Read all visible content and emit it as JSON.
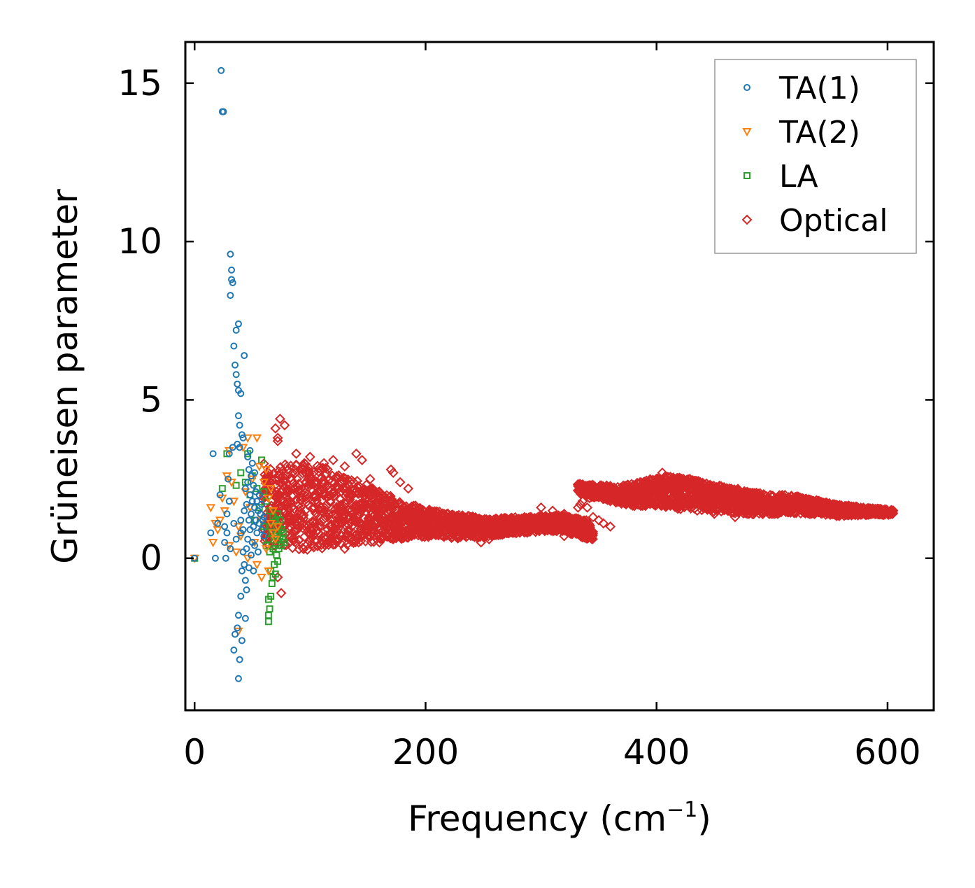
{
  "chart_data": {
    "type": "scatter",
    "xlabel": "Frequency (cm",
    "xlabel_sup": "−1",
    "xlabel_suffix": ")",
    "ylabel": "Grüneisen parameter",
    "xlim": [
      -8,
      640
    ],
    "ylim": [
      -4.8,
      16.3
    ],
    "x_ticks": [
      0,
      200,
      400,
      600
    ],
    "y_ticks": [
      0,
      5,
      10,
      15
    ],
    "grid": false,
    "legend_position": "top-right",
    "series": [
      {
        "name": "TA(1)",
        "marker": "circle",
        "color": "#1f77b4",
        "points": [
          [
            0,
            0
          ],
          [
            14,
            0.8
          ],
          [
            16,
            3.3
          ],
          [
            18,
            0
          ],
          [
            20,
            1.1
          ],
          [
            22,
            2.0
          ],
          [
            23,
            15.4
          ],
          [
            24,
            14.1
          ],
          [
            25,
            14.1
          ],
          [
            26,
            1.0
          ],
          [
            26,
            0.5
          ],
          [
            27,
            0
          ],
          [
            28,
            1.4
          ],
          [
            28,
            0.8
          ],
          [
            29,
            2.5
          ],
          [
            30,
            3.3
          ],
          [
            30,
            1.8
          ],
          [
            31,
            9.6
          ],
          [
            31,
            0.3
          ],
          [
            31,
            8.3
          ],
          [
            32,
            9.1
          ],
          [
            32,
            8.8
          ],
          [
            33,
            8.7
          ],
          [
            33,
            3.5
          ],
          [
            34,
            6.7
          ],
          [
            34,
            1.1
          ],
          [
            34,
            -2.9
          ],
          [
            35,
            6.1
          ],
          [
            35,
            -2.4
          ],
          [
            36,
            5.8
          ],
          [
            36,
            7.2
          ],
          [
            36,
            0.6
          ],
          [
            37,
            5.5
          ],
          [
            37,
            3.6
          ],
          [
            37,
            -2.2
          ],
          [
            38,
            7.4
          ],
          [
            38,
            5.3
          ],
          [
            38,
            4.5
          ],
          [
            38,
            -1.8
          ],
          [
            38,
            -3.8
          ],
          [
            39,
            4.2
          ],
          [
            39,
            3.5
          ],
          [
            39,
            -3.2
          ],
          [
            40,
            5.2
          ],
          [
            40,
            1.2
          ],
          [
            40,
            0.8
          ],
          [
            40,
            -1.2
          ],
          [
            41,
            3.9
          ],
          [
            41,
            -0.4
          ],
          [
            41,
            -2.6
          ],
          [
            42,
            3.8
          ],
          [
            42,
            0.9
          ],
          [
            42,
            0.2
          ],
          [
            43,
            6.4
          ],
          [
            43,
            1.5
          ],
          [
            43,
            -0.2
          ],
          [
            44,
            2.2
          ],
          [
            44,
            -0.7
          ],
          [
            44,
            -1.9
          ],
          [
            45,
            1.7
          ],
          [
            45,
            0.3
          ],
          [
            45,
            -1.0
          ],
          [
            46,
            3.2
          ],
          [
            46,
            2.4
          ],
          [
            46,
            0.6
          ],
          [
            47,
            2.8
          ],
          [
            47,
            1.2
          ],
          [
            47,
            -0.3
          ],
          [
            48,
            3.4
          ],
          [
            48,
            2.0
          ],
          [
            48,
            0.9
          ],
          [
            49,
            2.6
          ],
          [
            49,
            1.4
          ],
          [
            49,
            0.1
          ],
          [
            50,
            3.0
          ],
          [
            50,
            1.8
          ],
          [
            50,
            0.5
          ],
          [
            51,
            2.3
          ],
          [
            51,
            1.0
          ],
          [
            51,
            -0.4
          ],
          [
            52,
            2.7
          ],
          [
            52,
            1.6
          ],
          [
            52,
            0.4
          ],
          [
            53,
            2.1
          ],
          [
            53,
            1.2
          ],
          [
            54,
            1.8
          ],
          [
            54,
            0.8
          ],
          [
            55,
            1.5
          ],
          [
            55,
            0.2
          ],
          [
            56,
            2.0
          ],
          [
            56,
            1.1
          ],
          [
            57,
            1.4
          ],
          [
            58,
            0.9
          ],
          [
            58,
            1.7
          ],
          [
            59,
            1.2
          ],
          [
            60,
            0.7
          ],
          [
            60,
            1.3
          ]
        ]
      },
      {
        "name": "TA(2)",
        "marker": "triangle-down",
        "color": "#ff7f0e",
        "points": [
          [
            0,
            0
          ],
          [
            14,
            1.6
          ],
          [
            16,
            0.5
          ],
          [
            18,
            1.1
          ],
          [
            20,
            0.9
          ],
          [
            22,
            1.2
          ],
          [
            24,
            1.9
          ],
          [
            26,
            1.5
          ],
          [
            28,
            2.6
          ],
          [
            30,
            3.4
          ],
          [
            30,
            0.4
          ],
          [
            32,
            2.4
          ],
          [
            34,
            1.8
          ],
          [
            36,
            0.2
          ],
          [
            38,
            1.0
          ],
          [
            38,
            -2.3
          ],
          [
            40,
            0.7
          ],
          [
            42,
            3.5
          ],
          [
            44,
            2.1
          ],
          [
            46,
            3.8
          ],
          [
            46,
            0
          ],
          [
            48,
            1.6
          ],
          [
            50,
            2.5
          ],
          [
            52,
            0.5
          ],
          [
            54,
            3.8
          ],
          [
            54,
            -0.2
          ],
          [
            56,
            2.9
          ],
          [
            58,
            1.2
          ],
          [
            58,
            -0.6
          ],
          [
            60,
            2.4
          ],
          [
            62,
            2.8
          ],
          [
            62,
            0.3
          ],
          [
            64,
            1.9
          ],
          [
            64,
            -0.4
          ],
          [
            66,
            1.1
          ],
          [
            66,
            2.2
          ],
          [
            68,
            0.8
          ],
          [
            68,
            1.5
          ],
          [
            70,
            0.6
          ],
          [
            72,
            1.0
          ]
        ]
      },
      {
        "name": "LA",
        "marker": "square",
        "color": "#2ca02c",
        "points": [
          [
            0,
            0
          ],
          [
            24,
            2.2
          ],
          [
            28,
            3.3
          ],
          [
            36,
            2.3
          ],
          [
            40,
            2.7
          ],
          [
            44,
            2.4
          ],
          [
            46,
            3.3
          ],
          [
            48,
            2.0
          ],
          [
            50,
            2.6
          ],
          [
            52,
            1.2
          ],
          [
            54,
            2.2
          ],
          [
            56,
            1.6
          ],
          [
            58,
            3.1
          ],
          [
            60,
            2.1
          ],
          [
            60,
            1.0
          ],
          [
            62,
            1.8
          ],
          [
            62,
            0.4
          ],
          [
            64,
            0.6
          ],
          [
            64,
            -1.3
          ],
          [
            64,
            -1.8
          ],
          [
            64,
            -2.0
          ],
          [
            65,
            1.5
          ],
          [
            65,
            0.2
          ],
          [
            65,
            -1.6
          ],
          [
            66,
            1.0
          ],
          [
            66,
            -0.4
          ],
          [
            66,
            -1.2
          ],
          [
            67,
            0.8
          ],
          [
            67,
            -0.8
          ],
          [
            68,
            1.3
          ],
          [
            68,
            0.3
          ],
          [
            68,
            -0.6
          ],
          [
            69,
            0.7
          ],
          [
            69,
            -0.2
          ],
          [
            70,
            1.2
          ],
          [
            70,
            0.4
          ],
          [
            70,
            -0.5
          ],
          [
            71,
            0.8
          ],
          [
            71,
            0.1
          ],
          [
            72,
            1.4
          ],
          [
            72,
            0.6
          ],
          [
            72,
            -0.1
          ],
          [
            73,
            1.0
          ],
          [
            73,
            0.3
          ],
          [
            74,
            1.2
          ],
          [
            74,
            0.7
          ],
          [
            75,
            0.9
          ],
          [
            75,
            0.4
          ],
          [
            76,
            0.6
          ],
          [
            77,
            0.8
          ],
          [
            78,
            0.5
          ]
        ]
      },
      {
        "name": "Optical",
        "marker": "diamond",
        "color": "#d62728",
        "band_note": "dense cloud: centre and half-width per frequency",
        "envelope": [
          [
            60,
            1.5,
            1.5
          ],
          [
            70,
            1.6,
            1.2
          ],
          [
            80,
            1.7,
            1.3
          ],
          [
            90,
            1.6,
            1.4
          ],
          [
            100,
            1.6,
            1.4
          ],
          [
            110,
            1.6,
            1.3
          ],
          [
            120,
            1.6,
            1.2
          ],
          [
            130,
            1.5,
            1.1
          ],
          [
            140,
            1.5,
            1.0
          ],
          [
            150,
            1.4,
            0.9
          ],
          [
            160,
            1.3,
            0.8
          ],
          [
            170,
            1.3,
            0.7
          ],
          [
            180,
            1.2,
            0.6
          ],
          [
            190,
            1.2,
            0.5
          ],
          [
            200,
            1.1,
            0.45
          ],
          [
            210,
            1.1,
            0.4
          ],
          [
            220,
            1.05,
            0.4
          ],
          [
            230,
            1.0,
            0.38
          ],
          [
            240,
            1.0,
            0.35
          ],
          [
            250,
            0.95,
            0.3
          ],
          [
            260,
            1.0,
            0.28
          ],
          [
            270,
            1.0,
            0.27
          ],
          [
            280,
            1.05,
            0.25
          ],
          [
            290,
            1.05,
            0.25
          ],
          [
            300,
            1.1,
            0.24
          ],
          [
            310,
            1.1,
            0.25
          ],
          [
            320,
            1.1,
            0.25
          ],
          [
            330,
            1.0,
            0.28
          ],
          [
            340,
            0.9,
            0.3
          ],
          [
            345,
            0.8,
            0.2
          ]
        ],
        "envelope2": [
          [
            332,
            2.2,
            0.15
          ],
          [
            340,
            2.15,
            0.2
          ],
          [
            350,
            2.1,
            0.2
          ],
          [
            360,
            2.05,
            0.25
          ],
          [
            370,
            2.0,
            0.3
          ],
          [
            380,
            2.0,
            0.35
          ],
          [
            390,
            2.05,
            0.4
          ],
          [
            400,
            2.1,
            0.45
          ],
          [
            410,
            2.1,
            0.5
          ],
          [
            420,
            2.05,
            0.5
          ],
          [
            430,
            2.0,
            0.5
          ],
          [
            440,
            1.95,
            0.45
          ],
          [
            450,
            1.9,
            0.45
          ],
          [
            460,
            1.85,
            0.4
          ],
          [
            470,
            1.8,
            0.4
          ],
          [
            480,
            1.75,
            0.35
          ],
          [
            490,
            1.7,
            0.35
          ],
          [
            500,
            1.7,
            0.3
          ],
          [
            510,
            1.7,
            0.3
          ],
          [
            520,
            1.7,
            0.28
          ],
          [
            530,
            1.65,
            0.25
          ],
          [
            540,
            1.6,
            0.22
          ],
          [
            550,
            1.55,
            0.2
          ],
          [
            560,
            1.5,
            0.18
          ],
          [
            570,
            1.5,
            0.15
          ],
          [
            580,
            1.48,
            0.12
          ],
          [
            590,
            1.47,
            0.1
          ],
          [
            600,
            1.45,
            0.08
          ],
          [
            605,
            1.45,
            0.06
          ]
        ],
        "outliers": [
          [
            70,
            4.1
          ],
          [
            72,
            3.8
          ],
          [
            72,
            3.7
          ],
          [
            74,
            4.4
          ],
          [
            78,
            4.2
          ],
          [
            75,
            -1.1
          ],
          [
            72,
            -0.6
          ],
          [
            80,
            2.9
          ],
          [
            88,
            3.3
          ],
          [
            95,
            3.0
          ],
          [
            100,
            3.2
          ],
          [
            112,
            3.0
          ],
          [
            120,
            3.1
          ],
          [
            130,
            2.9
          ],
          [
            140,
            3.3
          ],
          [
            145,
            3.1
          ],
          [
            152,
            2.5
          ],
          [
            160,
            2.1
          ],
          [
            170,
            2.8
          ],
          [
            172,
            2.7
          ],
          [
            178,
            2.4
          ],
          [
            185,
            2.2
          ],
          [
            130,
            0.3
          ],
          [
            142,
            0.5
          ],
          [
            150,
            0.7
          ],
          [
            160,
            0.5
          ],
          [
            175,
            0.7
          ],
          [
            205,
            0.8
          ],
          [
            248,
            0.5
          ],
          [
            255,
            0.6
          ],
          [
            270,
            0.8
          ],
          [
            300,
            1.6
          ],
          [
            310,
            1.5
          ],
          [
            320,
            1.4
          ],
          [
            332,
            1.6
          ],
          [
            334,
            1.7
          ],
          [
            336,
            1.8
          ],
          [
            340,
            1.6
          ],
          [
            342,
            1.9
          ],
          [
            345,
            1.3
          ],
          [
            350,
            1.2
          ],
          [
            354,
            1.1
          ],
          [
            360,
            1.0
          ],
          [
            405,
            2.7
          ],
          [
            420,
            2.5
          ],
          [
            445,
            2.3
          ],
          [
            462,
            1.5
          ],
          [
            468,
            1.3
          ],
          [
            480,
            1.4
          ],
          [
            450,
            1.4
          ],
          [
            320,
            0.7
          ]
        ]
      }
    ]
  }
}
